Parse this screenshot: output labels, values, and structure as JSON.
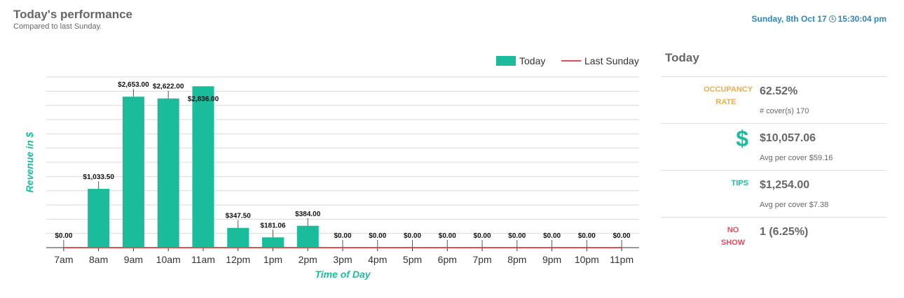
{
  "header": {
    "title": "Today's performance",
    "subtitle": "Compared to last Sunday.",
    "datetime": "Sunday, 8th Oct 17",
    "time": "15:30:04 pm",
    "clock_icon": "clock-icon"
  },
  "chart_data": {
    "type": "bar",
    "categories": [
      "7am",
      "8am",
      "9am",
      "10am",
      "11am",
      "12pm",
      "1pm",
      "2pm",
      "3pm",
      "4pm",
      "5pm",
      "6pm",
      "7pm",
      "8pm",
      "9pm",
      "10pm",
      "11pm"
    ],
    "series": [
      {
        "name": "Today",
        "type": "bar",
        "color": "#1abc9c",
        "values": [
          0,
          1033.5,
          2653,
          2622,
          2836,
          347.5,
          181.06,
          384,
          0,
          0,
          0,
          0,
          0,
          0,
          0,
          0,
          0
        ]
      },
      {
        "name": "Last Sunday",
        "type": "line",
        "color": "#d9534f",
        "values": [
          0,
          0,
          0,
          0,
          0,
          0,
          0,
          0,
          0,
          0,
          0,
          0,
          0,
          0,
          0,
          0,
          0
        ]
      }
    ],
    "data_labels": [
      "$0.00",
      "$1,033.50",
      "$2,653.00",
      "$2,622.00",
      "$2,836.00",
      "$347.50",
      "$181.06",
      "$384.00",
      "$0.00",
      "$0.00",
      "$0.00",
      "$0.00",
      "$0.00",
      "$0.00",
      "$0.00",
      "$0.00",
      "$0.00"
    ],
    "xlabel": "Time of Day",
    "ylabel": "Revenue in $",
    "ylim": [
      0,
      3000
    ],
    "grid": true,
    "legend": "top-right"
  },
  "panel": {
    "title": "Today",
    "rows": [
      {
        "label": "OCCUPANCY RATE",
        "value": "62.52%",
        "sub": "# cover(s) 170"
      },
      {
        "label": "",
        "icon": "dollar-icon",
        "icon_glyph": "$",
        "value": "$10,057.06",
        "sub": "Avg per cover $59.16"
      },
      {
        "label": "TIPS",
        "value": "$1,254.00",
        "sub": "Avg per cover $7.38"
      },
      {
        "label": "NO SHOW",
        "value": "1 (6.25%)",
        "sub": ""
      }
    ]
  },
  "colors": {
    "accent": "#1abc9c",
    "link": "#2e86c1",
    "occupancy": "#f0ad4e",
    "noshow": "#e74c5c",
    "last_sunday": "#d9534f"
  }
}
